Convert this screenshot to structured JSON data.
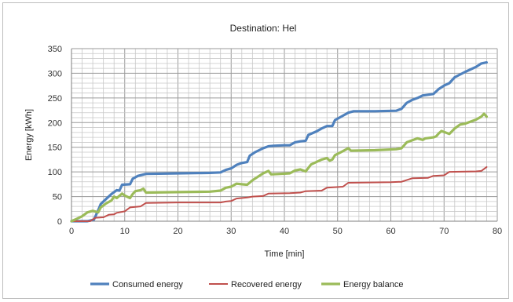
{
  "chart_data": {
    "type": "line",
    "title": "Destination: Hel",
    "xlabel": "Time [min]",
    "ylabel": "Energy [kWh]",
    "xlim": [
      0,
      80
    ],
    "ylim": [
      0,
      350
    ],
    "xticks": [
      0,
      10,
      20,
      30,
      40,
      50,
      60,
      70,
      80
    ],
    "yticks": [
      0,
      50,
      100,
      150,
      200,
      250,
      300,
      350
    ],
    "grid": true,
    "legend_position": "bottom",
    "series": [
      {
        "name": "Consumed energy",
        "color": "#4f81bd",
        "points": [
          [
            0,
            0
          ],
          [
            3,
            0
          ],
          [
            4.2,
            3
          ],
          [
            5,
            22
          ],
          [
            5.5,
            35
          ],
          [
            6.5,
            45
          ],
          [
            7.5,
            55
          ],
          [
            8.5,
            63
          ],
          [
            9,
            62
          ],
          [
            9.5,
            74
          ],
          [
            11,
            75
          ],
          [
            11.5,
            86
          ],
          [
            12.5,
            92
          ],
          [
            14,
            96
          ],
          [
            20,
            97
          ],
          [
            26,
            98
          ],
          [
            28,
            99
          ],
          [
            29,
            104
          ],
          [
            30,
            107
          ],
          [
            31,
            114
          ],
          [
            32,
            118
          ],
          [
            33,
            120
          ],
          [
            33.5,
            133
          ],
          [
            34.5,
            140
          ],
          [
            36,
            148
          ],
          [
            37,
            152
          ],
          [
            38,
            153
          ],
          [
            40,
            154
          ],
          [
            41,
            154
          ],
          [
            42,
            160
          ],
          [
            43,
            162
          ],
          [
            44,
            163
          ],
          [
            44.5,
            175
          ],
          [
            46,
            182
          ],
          [
            47,
            188
          ],
          [
            48,
            193
          ],
          [
            49,
            193
          ],
          [
            49.5,
            205
          ],
          [
            51,
            214
          ],
          [
            52,
            220
          ],
          [
            53,
            223
          ],
          [
            57,
            223
          ],
          [
            61,
            224
          ],
          [
            62,
            228
          ],
          [
            63,
            240
          ],
          [
            64,
            246
          ],
          [
            65,
            250
          ],
          [
            66,
            255
          ],
          [
            68,
            258
          ],
          [
            69,
            268
          ],
          [
            70,
            275
          ],
          [
            71,
            280
          ],
          [
            72,
            292
          ],
          [
            74,
            303
          ],
          [
            76,
            313
          ],
          [
            77,
            320
          ],
          [
            78,
            322
          ]
        ]
      },
      {
        "name": "Recovered energy",
        "color": "#c0504d",
        "points": [
          [
            0,
            0
          ],
          [
            3.5,
            0
          ],
          [
            4.5,
            7
          ],
          [
            6,
            8
          ],
          [
            7,
            13
          ],
          [
            8,
            14
          ],
          [
            8.5,
            17
          ],
          [
            10,
            20
          ],
          [
            11,
            28
          ],
          [
            13,
            30
          ],
          [
            14,
            37
          ],
          [
            20,
            38
          ],
          [
            28,
            38
          ],
          [
            29,
            40
          ],
          [
            30,
            41
          ],
          [
            31,
            46
          ],
          [
            33,
            48
          ],
          [
            34,
            50
          ],
          [
            36,
            51
          ],
          [
            37,
            56
          ],
          [
            41,
            57
          ],
          [
            43,
            58
          ],
          [
            44,
            61
          ],
          [
            47,
            62
          ],
          [
            48,
            68
          ],
          [
            51,
            70
          ],
          [
            52,
            78
          ],
          [
            60,
            79
          ],
          [
            62,
            80
          ],
          [
            64,
            87
          ],
          [
            67,
            88
          ],
          [
            68,
            92
          ],
          [
            70,
            93
          ],
          [
            71,
            100
          ],
          [
            76,
            101
          ],
          [
            77,
            102
          ],
          [
            78,
            110
          ]
        ]
      },
      {
        "name": "Energy balance",
        "color": "#9bbb59",
        "points": [
          [
            0,
            0
          ],
          [
            1,
            5
          ],
          [
            2,
            10
          ],
          [
            3,
            18
          ],
          [
            4,
            21
          ],
          [
            5,
            18
          ],
          [
            5.5,
            28
          ],
          [
            6.5,
            36
          ],
          [
            7.5,
            42
          ],
          [
            8,
            50
          ],
          [
            8.5,
            47
          ],
          [
            9.5,
            56
          ],
          [
            10,
            52
          ],
          [
            11,
            47
          ],
          [
            11.5,
            55
          ],
          [
            12,
            61
          ],
          [
            13,
            63
          ],
          [
            13.5,
            66
          ],
          [
            14,
            58
          ],
          [
            20,
            59
          ],
          [
            26,
            60
          ],
          [
            28,
            62
          ],
          [
            29,
            68
          ],
          [
            30,
            70
          ],
          [
            31,
            76
          ],
          [
            32,
            75
          ],
          [
            33,
            74
          ],
          [
            34,
            83
          ],
          [
            35,
            90
          ],
          [
            36,
            97
          ],
          [
            37,
            102
          ],
          [
            37.5,
            95
          ],
          [
            41,
            97
          ],
          [
            42,
            103
          ],
          [
            43,
            105
          ],
          [
            44,
            101
          ],
          [
            45,
            115
          ],
          [
            46,
            120
          ],
          [
            47,
            125
          ],
          [
            48,
            128
          ],
          [
            48.5,
            123
          ],
          [
            49,
            125
          ],
          [
            49.5,
            134
          ],
          [
            51,
            142
          ],
          [
            52,
            148
          ],
          [
            52.5,
            143
          ],
          [
            57,
            144
          ],
          [
            61,
            146
          ],
          [
            62,
            148
          ],
          [
            63,
            160
          ],
          [
            64,
            164
          ],
          [
            65,
            168
          ],
          [
            66,
            165
          ],
          [
            66.5,
            168
          ],
          [
            68,
            170
          ],
          [
            68.5,
            172
          ],
          [
            69,
            178
          ],
          [
            69.5,
            183
          ],
          [
            70,
            181
          ],
          [
            71,
            177
          ],
          [
            72,
            188
          ],
          [
            73,
            196
          ],
          [
            74,
            198
          ],
          [
            76,
            206
          ],
          [
            77,
            212
          ],
          [
            77.5,
            218
          ],
          [
            78,
            212
          ]
        ]
      }
    ]
  }
}
